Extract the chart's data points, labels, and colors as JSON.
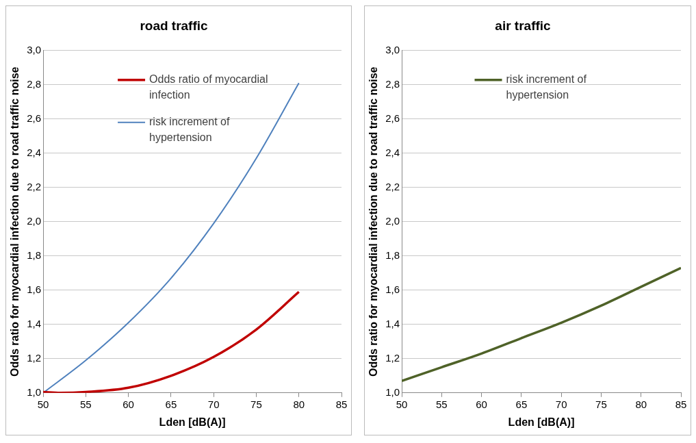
{
  "chart_data": [
    {
      "type": "line",
      "title": "road traffic",
      "xlabel": "Lden [dB(A)]",
      "ylabel": "Odds ratio for myocardial infection due to road traffic noise",
      "xlim": [
        50,
        85
      ],
      "xticks": [
        50,
        55,
        60,
        65,
        70,
        75,
        80,
        85
      ],
      "ylim": [
        1,
        3
      ],
      "yticks": [
        {
          "value": 1,
          "label": "1,0"
        },
        {
          "value": 1.2,
          "label": "1,2"
        },
        {
          "value": 1.4,
          "label": "1,4"
        },
        {
          "value": 1.6,
          "label": "1,6"
        },
        {
          "value": 1.8,
          "label": "1,8"
        },
        {
          "value": 2,
          "label": "2,0"
        },
        {
          "value": 2.2,
          "label": "2,2"
        },
        {
          "value": 2.4,
          "label": "2,4"
        },
        {
          "value": 2.6,
          "label": "2,6"
        },
        {
          "value": 2.8,
          "label": "2,8"
        },
        {
          "value": 3,
          "label": "3,0"
        }
      ],
      "grid": "y",
      "legend": "top left",
      "marker": "none",
      "series": [
        {
          "name": "Odds ratio of myocardial infection",
          "color": "#c00000",
          "x": [
            50,
            52,
            55,
            60,
            65,
            70,
            75,
            80
          ],
          "values": [
            1.005,
            1.0,
            1.005,
            1.03,
            1.1,
            1.21,
            1.37,
            1.59
          ]
        },
        {
          "name": "risk increment of hypertension",
          "color": "#4f81bd",
          "x": [
            50,
            55,
            60,
            65,
            70,
            75,
            80
          ],
          "values": [
            1.0,
            1.19,
            1.41,
            1.67,
            1.99,
            2.37,
            2.81
          ]
        }
      ]
    },
    {
      "type": "line",
      "title": "air traffic",
      "xlabel": "Lden [dB(A)]",
      "ylabel": "Odds ratio for myocardial infection due to road traffic noise",
      "xlim": [
        50,
        85
      ],
      "xticks": [
        50,
        55,
        60,
        65,
        70,
        75,
        80,
        85
      ],
      "ylim": [
        1,
        3
      ],
      "yticks": [
        {
          "value": 1,
          "label": "1,0"
        },
        {
          "value": 1.2,
          "label": "1,2"
        },
        {
          "value": 1.4,
          "label": "1,4"
        },
        {
          "value": 1.6,
          "label": "1,6"
        },
        {
          "value": 1.8,
          "label": "1,8"
        },
        {
          "value": 2,
          "label": "2,0"
        },
        {
          "value": 2.2,
          "label": "2,2"
        },
        {
          "value": 2.4,
          "label": "2,4"
        },
        {
          "value": 2.6,
          "label": "2,6"
        },
        {
          "value": 2.8,
          "label": "2,8"
        },
        {
          "value": 3,
          "label": "3,0"
        }
      ],
      "grid": "y",
      "legend": "top",
      "marker": "none",
      "series": [
        {
          "name": "risk increment of hypertension",
          "color": "#4f6228",
          "x": [
            50,
            55,
            60,
            65,
            70,
            75,
            80,
            85
          ],
          "values": [
            1.07,
            1.15,
            1.23,
            1.32,
            1.41,
            1.51,
            1.62,
            1.73
          ]
        }
      ]
    }
  ]
}
